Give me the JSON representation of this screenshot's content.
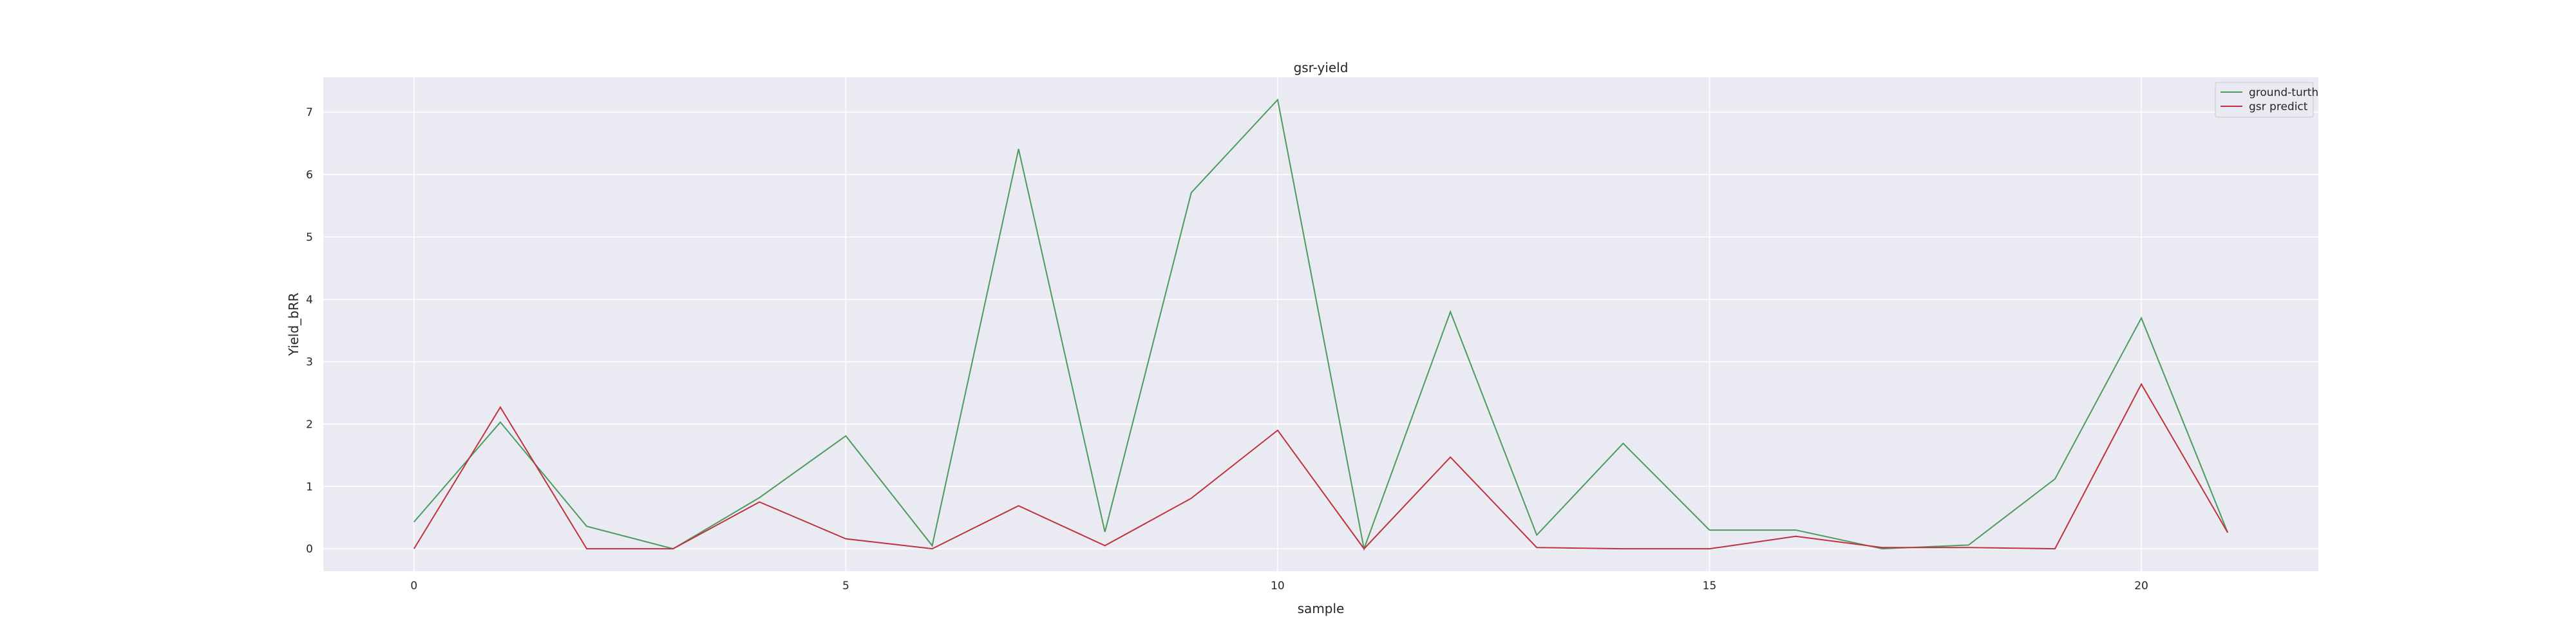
{
  "chart_data": {
    "type": "line",
    "title": "gsr-yield",
    "xlabel": "sample",
    "ylabel": "Yield_bRR",
    "x": [
      0,
      1,
      2,
      3,
      4,
      5,
      6,
      7,
      8,
      9,
      10,
      11,
      12,
      13,
      14,
      15,
      16,
      17,
      18,
      19,
      20,
      21
    ],
    "xlim": [
      -1.05,
      22.05
    ],
    "ylim": [
      -0.36,
      7.56
    ],
    "xticks": [
      0,
      5,
      10,
      15,
      20
    ],
    "yticks": [
      0,
      1,
      2,
      3,
      4,
      5,
      6,
      7
    ],
    "grid": true,
    "legend_position": "top-right",
    "series": [
      {
        "name": "ground-turth",
        "color": "#4c9a5e",
        "values": [
          0.43,
          2.03,
          0.36,
          0.0,
          0.82,
          1.81,
          0.05,
          6.41,
          0.27,
          5.71,
          7.2,
          0.0,
          3.8,
          0.22,
          1.69,
          0.3,
          0.3,
          0.0,
          0.06,
          1.12,
          3.7,
          0.26
        ]
      },
      {
        "name": "gsr predict",
        "color": "#c0303e",
        "values": [
          0.0,
          2.27,
          0.0,
          0.0,
          0.75,
          0.16,
          0.0,
          0.69,
          0.05,
          0.81,
          1.9,
          0.0,
          1.47,
          0.02,
          0.0,
          0.0,
          0.2,
          0.02,
          0.02,
          0.0,
          2.64,
          0.26
        ]
      }
    ]
  }
}
